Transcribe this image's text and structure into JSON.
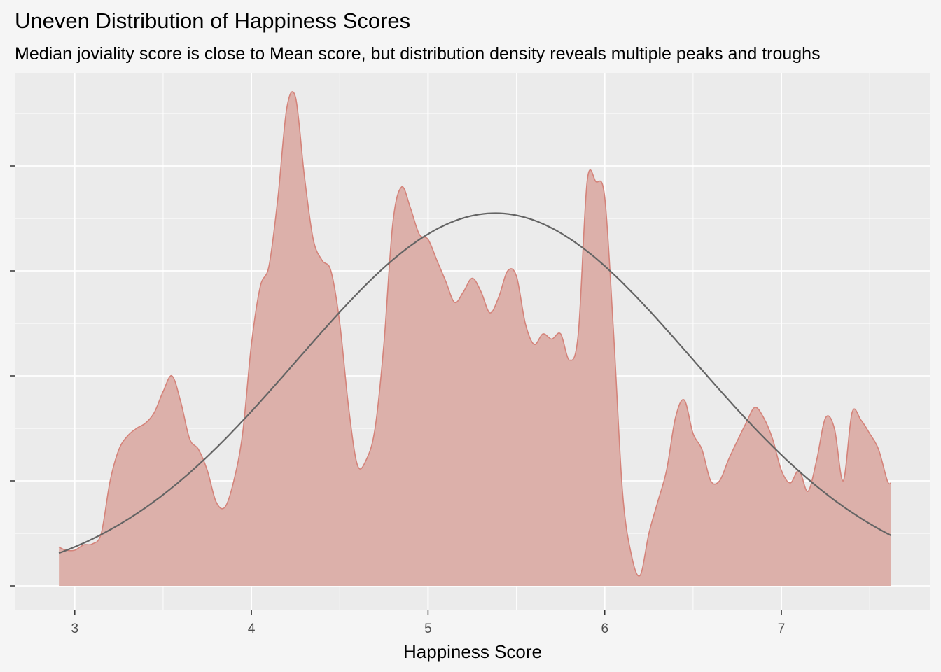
{
  "chart_data": {
    "type": "area",
    "title": "Uneven Distribution of Happiness Scores",
    "subtitle": "Median joviality score is close to Mean score, but distribution density reveals multiple peaks and troughs",
    "xlabel": "Happiness Score",
    "ylabel": "",
    "x_ticks": [
      3,
      4,
      5,
      6,
      7
    ],
    "xlim": [
      2.66,
      7.84
    ],
    "ylim": [
      0,
      0.52
    ],
    "y_ticks_unlabeled": [
      0.0,
      0.1,
      0.2,
      0.3,
      0.4
    ],
    "grid": true,
    "legend": "none",
    "colors": {
      "density_fill": "#dcb0aa",
      "density_line": "#d4837a",
      "normal_curve": "#646464",
      "panel_background": "#ebebeb",
      "page_background": "#f5f5f5",
      "gridline": "#ffffff"
    },
    "series": [
      {
        "kind": "density",
        "x": [
          2.91,
          2.95,
          3.0,
          3.05,
          3.1,
          3.15,
          3.2,
          3.25,
          3.3,
          3.35,
          3.4,
          3.45,
          3.5,
          3.55,
          3.6,
          3.65,
          3.7,
          3.75,
          3.8,
          3.85,
          3.9,
          3.95,
          4.0,
          4.05,
          4.1,
          4.15,
          4.2,
          4.25,
          4.3,
          4.35,
          4.4,
          4.45,
          4.5,
          4.55,
          4.6,
          4.65,
          4.7,
          4.75,
          4.8,
          4.85,
          4.9,
          4.95,
          5.0,
          5.05,
          5.1,
          5.15,
          5.2,
          5.25,
          5.3,
          5.35,
          5.4,
          5.45,
          5.5,
          5.55,
          5.6,
          5.65,
          5.7,
          5.75,
          5.8,
          5.85,
          5.9,
          5.95,
          6.0,
          6.05,
          6.1,
          6.15,
          6.2,
          6.25,
          6.3,
          6.35,
          6.4,
          6.45,
          6.5,
          6.55,
          6.6,
          6.65,
          6.7,
          6.75,
          6.8,
          6.85,
          6.9,
          6.95,
          7.0,
          7.05,
          7.1,
          7.15,
          7.2,
          7.25,
          7.3,
          7.35,
          7.4,
          7.45,
          7.5,
          7.55,
          7.6,
          7.62
        ],
        "y": [
          0.037,
          0.034,
          0.034,
          0.039,
          0.04,
          0.05,
          0.1,
          0.13,
          0.143,
          0.15,
          0.155,
          0.165,
          0.185,
          0.2,
          0.175,
          0.14,
          0.13,
          0.11,
          0.08,
          0.075,
          0.1,
          0.145,
          0.23,
          0.285,
          0.305,
          0.37,
          0.455,
          0.465,
          0.39,
          0.33,
          0.31,
          0.3,
          0.25,
          0.17,
          0.115,
          0.12,
          0.15,
          0.23,
          0.345,
          0.38,
          0.36,
          0.335,
          0.33,
          0.31,
          0.29,
          0.27,
          0.28,
          0.293,
          0.28,
          0.26,
          0.275,
          0.3,
          0.295,
          0.25,
          0.23,
          0.24,
          0.235,
          0.24,
          0.215,
          0.24,
          0.385,
          0.385,
          0.37,
          0.24,
          0.09,
          0.03,
          0.01,
          0.05,
          0.08,
          0.11,
          0.16,
          0.177,
          0.145,
          0.13,
          0.1,
          0.1,
          0.12,
          0.138,
          0.155,
          0.17,
          0.16,
          0.14,
          0.11,
          0.098,
          0.11,
          0.09,
          0.12,
          0.16,
          0.15,
          0.1,
          0.165,
          0.158,
          0.145,
          0.13,
          0.1,
          0.098
        ]
      },
      {
        "kind": "normal_fit",
        "mean": 5.38,
        "sd": 1.12,
        "peak": 0.355
      }
    ]
  }
}
